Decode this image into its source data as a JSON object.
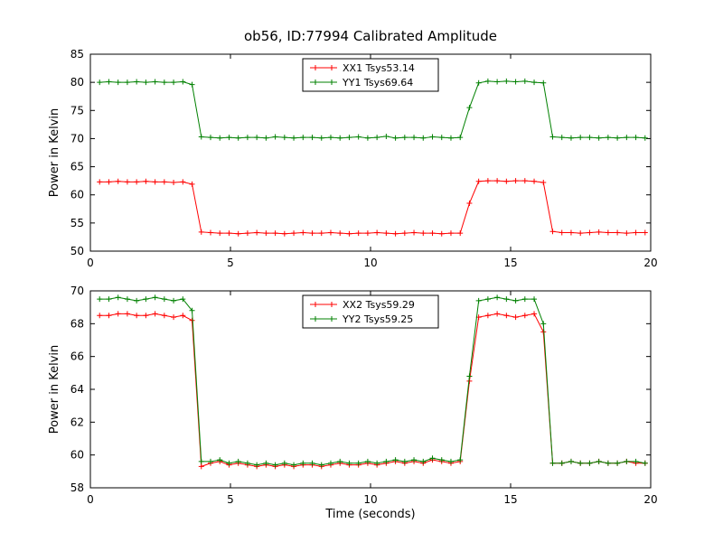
{
  "title": "ob56, ID:77994 Calibrated Amplitude",
  "chart_data": [
    {
      "type": "line",
      "title": "",
      "xlabel": "",
      "ylabel": "Power in Kelvin",
      "xlim": [
        0,
        20
      ],
      "ylim": [
        50,
        85
      ],
      "xticks": [
        0,
        5,
        10,
        15,
        20
      ],
      "yticks": [
        50,
        55,
        60,
        65,
        70,
        75,
        80,
        85
      ],
      "grid": false,
      "legend_position": "upper center",
      "marker": "+",
      "x": [
        0.33,
        0.66,
        0.99,
        1.32,
        1.65,
        1.98,
        2.31,
        2.64,
        2.97,
        3.3,
        3.63,
        3.96,
        4.29,
        4.62,
        4.95,
        5.28,
        5.61,
        5.94,
        6.27,
        6.6,
        6.93,
        7.26,
        7.59,
        7.92,
        8.25,
        8.58,
        8.91,
        9.24,
        9.57,
        9.9,
        10.23,
        10.56,
        10.89,
        11.22,
        11.55,
        11.88,
        12.21,
        12.54,
        12.87,
        13.2,
        13.53,
        13.86,
        14.19,
        14.52,
        14.85,
        15.18,
        15.51,
        15.84,
        16.17,
        16.5,
        16.83,
        17.16,
        17.49,
        17.82,
        18.15,
        18.48,
        18.81,
        19.14,
        19.47,
        19.8
      ],
      "series": [
        {
          "name": "XX1 Tsys53.14",
          "color": "#ff0000",
          "values": [
            62.3,
            62.3,
            62.4,
            62.3,
            62.3,
            62.4,
            62.3,
            62.3,
            62.2,
            62.3,
            61.9,
            53.4,
            53.3,
            53.2,
            53.2,
            53.1,
            53.2,
            53.3,
            53.2,
            53.2,
            53.1,
            53.2,
            53.3,
            53.2,
            53.2,
            53.3,
            53.2,
            53.1,
            53.2,
            53.2,
            53.3,
            53.2,
            53.1,
            53.2,
            53.3,
            53.2,
            53.2,
            53.1,
            53.2,
            53.2,
            58.5,
            62.4,
            62.5,
            62.5,
            62.4,
            62.5,
            62.5,
            62.4,
            62.2,
            53.5,
            53.3,
            53.3,
            53.2,
            53.3,
            53.4,
            53.3,
            53.3,
            53.2,
            53.3,
            53.3
          ]
        },
        {
          "name": "YY1 Tsys69.64",
          "color": "#008000",
          "values": [
            80.0,
            80.1,
            80.0,
            80.0,
            80.1,
            80.0,
            80.1,
            80.0,
            80.0,
            80.1,
            79.6,
            70.3,
            70.2,
            70.1,
            70.2,
            70.1,
            70.2,
            70.2,
            70.1,
            70.3,
            70.2,
            70.1,
            70.2,
            70.2,
            70.1,
            70.2,
            70.1,
            70.2,
            70.3,
            70.1,
            70.2,
            70.4,
            70.1,
            70.2,
            70.2,
            70.1,
            70.3,
            70.2,
            70.1,
            70.2,
            75.5,
            79.9,
            80.2,
            80.1,
            80.2,
            80.1,
            80.2,
            80.0,
            79.9,
            70.3,
            70.2,
            70.1,
            70.2,
            70.2,
            70.1,
            70.2,
            70.1,
            70.2,
            70.2,
            70.1
          ]
        }
      ]
    },
    {
      "type": "line",
      "title": "",
      "xlabel": "Time (seconds)",
      "ylabel": "Power in Kelvin",
      "xlim": [
        0,
        20
      ],
      "ylim": [
        58,
        70
      ],
      "xticks": [
        0,
        5,
        10,
        15,
        20
      ],
      "yticks": [
        58,
        60,
        62,
        64,
        66,
        68,
        70
      ],
      "grid": false,
      "legend_position": "upper center",
      "marker": "+",
      "x": [
        0.33,
        0.66,
        0.99,
        1.32,
        1.65,
        1.98,
        2.31,
        2.64,
        2.97,
        3.3,
        3.63,
        3.96,
        4.29,
        4.62,
        4.95,
        5.28,
        5.61,
        5.94,
        6.27,
        6.6,
        6.93,
        7.26,
        7.59,
        7.92,
        8.25,
        8.58,
        8.91,
        9.24,
        9.57,
        9.9,
        10.23,
        10.56,
        10.89,
        11.22,
        11.55,
        11.88,
        12.21,
        12.54,
        12.87,
        13.2,
        13.53,
        13.86,
        14.19,
        14.52,
        14.85,
        15.18,
        15.51,
        15.84,
        16.17,
        16.5,
        16.83,
        17.16,
        17.49,
        17.82,
        18.15,
        18.48,
        18.81,
        19.14,
        19.47,
        19.8
      ],
      "series": [
        {
          "name": "XX2 Tsys59.29",
          "color": "#ff0000",
          "values": [
            68.5,
            68.5,
            68.6,
            68.6,
            68.5,
            68.5,
            68.6,
            68.5,
            68.4,
            68.5,
            68.2,
            59.3,
            59.5,
            59.6,
            59.4,
            59.5,
            59.4,
            59.3,
            59.4,
            59.3,
            59.4,
            59.3,
            59.4,
            59.4,
            59.3,
            59.4,
            59.5,
            59.4,
            59.4,
            59.5,
            59.4,
            59.5,
            59.6,
            59.5,
            59.6,
            59.5,
            59.7,
            59.6,
            59.5,
            59.6,
            64.5,
            68.4,
            68.5,
            68.6,
            68.5,
            68.4,
            68.5,
            68.6,
            67.5,
            59.5,
            59.5,
            59.6,
            59.5,
            59.5,
            59.6,
            59.5,
            59.5,
            59.6,
            59.5,
            59.5
          ]
        },
        {
          "name": "YY2 Tsys59.25",
          "color": "#008000",
          "values": [
            69.5,
            69.5,
            69.6,
            69.5,
            69.4,
            69.5,
            69.6,
            69.5,
            69.4,
            69.5,
            68.8,
            59.6,
            59.6,
            59.7,
            59.5,
            59.6,
            59.5,
            59.4,
            59.5,
            59.4,
            59.5,
            59.4,
            59.5,
            59.5,
            59.4,
            59.5,
            59.6,
            59.5,
            59.5,
            59.6,
            59.5,
            59.6,
            59.7,
            59.6,
            59.7,
            59.6,
            59.8,
            59.7,
            59.6,
            59.7,
            64.8,
            69.4,
            69.5,
            69.6,
            69.5,
            69.4,
            69.5,
            69.5,
            68.0,
            59.5,
            59.5,
            59.6,
            59.5,
            59.5,
            59.6,
            59.5,
            59.5,
            59.6,
            59.6,
            59.5
          ]
        }
      ]
    }
  ]
}
